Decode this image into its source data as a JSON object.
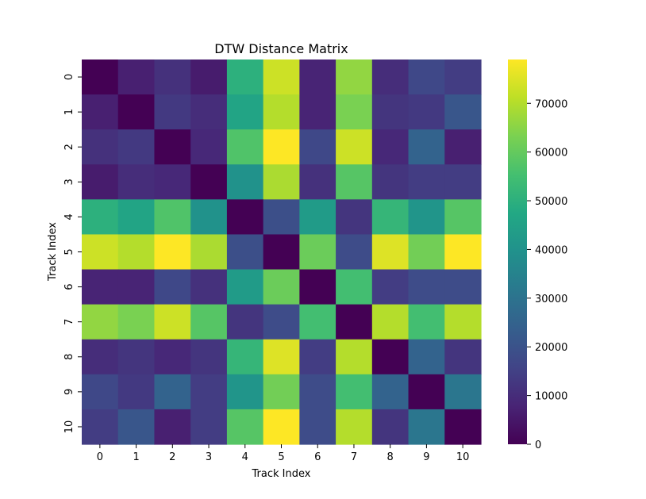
{
  "chart_data": {
    "type": "heatmap",
    "title": "DTW Distance Matrix",
    "xlabel": "Track Index",
    "ylabel": "Track Index",
    "x_categories": [
      "0",
      "1",
      "2",
      "3",
      "4",
      "5",
      "6",
      "7",
      "8",
      "9",
      "10"
    ],
    "y_categories": [
      "0",
      "1",
      "2",
      "3",
      "4",
      "5",
      "6",
      "7",
      "8",
      "9",
      "10"
    ],
    "colormap": "viridis",
    "vmin": 0,
    "vmax": 79000,
    "colorbar_ticks": [
      0,
      10000,
      20000,
      30000,
      40000,
      50000,
      60000,
      70000
    ],
    "colorbar_tick_labels": [
      "0",
      "10000",
      "20000",
      "30000",
      "40000",
      "50000",
      "60000",
      "70000"
    ],
    "values": [
      [
        0,
        7000,
        11000,
        6000,
        50000,
        73000,
        8000,
        66000,
        10000,
        17000,
        14000
      ],
      [
        7000,
        0,
        13000,
        10000,
        46000,
        70000,
        8000,
        63000,
        12000,
        13000,
        21000
      ],
      [
        11000,
        13000,
        0,
        9000,
        57000,
        79000,
        17000,
        73000,
        9000,
        25000,
        7000
      ],
      [
        6000,
        10000,
        9000,
        0,
        40000,
        69000,
        11000,
        58000,
        12000,
        14000,
        14000
      ],
      [
        50000,
        46000,
        57000,
        40000,
        0,
        19000,
        43000,
        12000,
        52000,
        41000,
        58000
      ],
      [
        73000,
        70000,
        79000,
        69000,
        19000,
        0,
        61000,
        18000,
        75000,
        62000,
        79000
      ],
      [
        8000,
        8000,
        17000,
        11000,
        43000,
        61000,
        0,
        55000,
        14000,
        18000,
        18000
      ],
      [
        66000,
        63000,
        73000,
        58000,
        12000,
        18000,
        55000,
        0,
        70000,
        55000,
        70000
      ],
      [
        10000,
        12000,
        9000,
        12000,
        52000,
        75000,
        14000,
        70000,
        0,
        25000,
        12000
      ],
      [
        17000,
        13000,
        25000,
        14000,
        41000,
        62000,
        18000,
        55000,
        25000,
        0,
        31000
      ],
      [
        14000,
        21000,
        7000,
        14000,
        58000,
        79000,
        18000,
        70000,
        12000,
        31000,
        0
      ]
    ]
  }
}
